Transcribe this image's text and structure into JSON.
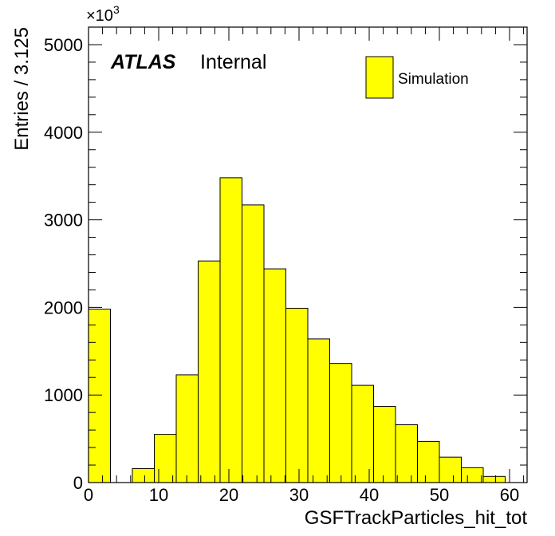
{
  "chart_data": {
    "type": "bar",
    "bin_width": 3.125,
    "x": [
      0,
      3.125,
      6.25,
      9.375,
      12.5,
      15.625,
      18.75,
      21.875,
      25,
      28.125,
      31.25,
      34.375,
      37.5,
      40.625,
      43.75,
      46.875,
      50,
      53.125,
      56.25
    ],
    "values": [
      1980,
      0,
      160,
      550,
      1230,
      2530,
      3480,
      3170,
      2440,
      1990,
      1640,
      1360,
      1110,
      870,
      660,
      470,
      290,
      170,
      70
    ],
    "series": [
      {
        "name": "Simulation",
        "values": [
          1980,
          0,
          160,
          550,
          1230,
          2530,
          3480,
          3170,
          2440,
          1990,
          1640,
          1360,
          1110,
          870,
          660,
          470,
          290,
          170,
          70
        ]
      }
    ],
    "xlabel": "GSFTrackParticles_hit_tot",
    "ylabel": "Entries / 3.125",
    "xlim": [
      0,
      62.5
    ],
    "ylim": [
      0,
      5200
    ],
    "x_ticks": [
      0,
      10,
      20,
      30,
      40,
      50,
      60
    ],
    "x_tick_labels": [
      "0",
      "10",
      "20",
      "30",
      "40",
      "50",
      "60"
    ],
    "y_ticks": [
      0,
      1000,
      2000,
      3000,
      4000,
      5000
    ],
    "y_tick_labels": [
      "0",
      "1000",
      "2000",
      "3000",
      "4000",
      "5000"
    ],
    "y_multiplier_base": "×10",
    "y_multiplier_exp": "3",
    "annotation_bold": "ATLAS",
    "annotation_text": "Internal",
    "legend_label": "Simulation",
    "legend_position": "top-right",
    "grid": false,
    "fill_color": "#ffff00",
    "line_color": "#000000"
  }
}
